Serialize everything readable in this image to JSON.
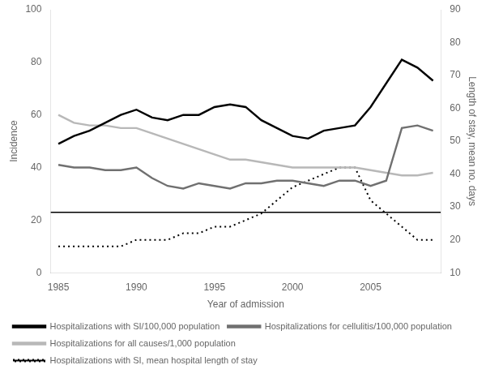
{
  "chart_data": {
    "type": "line",
    "x": [
      1985,
      1986,
      1987,
      1988,
      1989,
      1990,
      1991,
      1992,
      1993,
      1994,
      1995,
      1996,
      1997,
      1998,
      1999,
      2000,
      2001,
      2002,
      2003,
      2004,
      2005,
      2006,
      2007,
      2008,
      2009
    ],
    "series": [
      {
        "name": "Hospitalizations with SI/100,000 population",
        "color": "#000000",
        "line_style": "solid",
        "values": [
          49,
          52,
          54,
          57,
          60,
          62,
          59,
          58,
          60,
          60,
          63,
          64,
          63,
          58,
          55,
          52,
          51,
          54,
          55,
          56,
          63,
          72,
          81,
          78,
          73
        ]
      },
      {
        "name": "Hospitalizations for cellulitis/100,000 population",
        "color": "#707070",
        "line_style": "solid",
        "values": [
          41,
          40,
          40,
          39,
          39,
          40,
          36,
          33,
          32,
          34,
          33,
          32,
          34,
          34,
          35,
          35,
          34,
          33,
          35,
          35,
          33,
          35,
          55,
          56,
          54
        ]
      },
      {
        "name": "Hospitalizations for all causes/1,000 population",
        "color": "#b8b8b8",
        "line_style": "solid",
        "values": [
          60,
          57,
          56,
          56,
          55,
          55,
          53,
          51,
          49,
          47,
          45,
          43,
          43,
          42,
          41,
          40,
          40,
          40,
          40,
          40,
          39,
          38,
          37,
          37,
          38
        ]
      },
      {
        "name": "Hospitalizations with SI, mean hospital length of stay",
        "color": "#000000",
        "line_style": "dotted",
        "axis": "y2",
        "values": [
          18,
          18,
          18,
          18,
          18,
          20,
          20,
          20,
          22,
          22,
          24,
          24,
          26,
          28,
          32,
          36,
          38,
          40,
          42,
          42,
          32,
          28,
          24,
          20,
          20
        ]
      }
    ],
    "separator": {
      "y": 23,
      "color": "#000000"
    },
    "xlabel": "Year of admission",
    "ylabel": "Incidence",
    "y2label": "Length of stay, mean no. days",
    "xlim": [
      1984.5,
      2009.5
    ],
    "xticks": [
      1985,
      1990,
      1995,
      2000,
      2005
    ],
    "ylim": [
      0,
      100
    ],
    "yticks": [
      0,
      20,
      40,
      60,
      80,
      100
    ],
    "y2lim": [
      10,
      90
    ],
    "y2ticks": [
      10,
      20,
      30,
      40,
      50,
      60,
      70,
      80,
      90
    ],
    "grid": false,
    "legend": "bottom"
  }
}
